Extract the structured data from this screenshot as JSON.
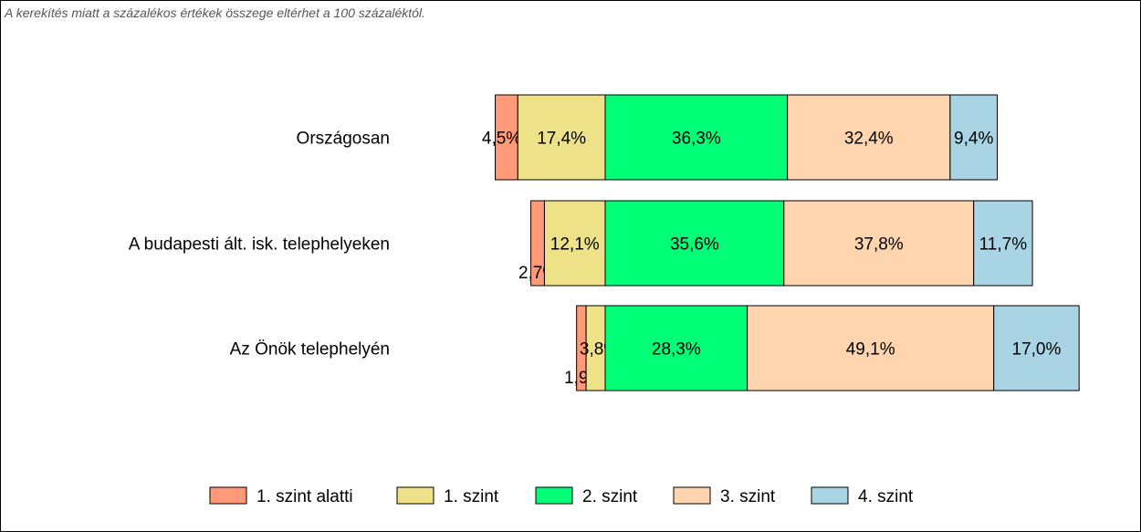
{
  "note": "A kerekítés miatt a  százalékos értékek összege eltérhet a 100 százaléktól.",
  "chart_data": {
    "type": "bar",
    "orientation": "horizontal",
    "stacked": true,
    "alignment": "diverging",
    "categories": [
      "Országosan",
      "A budapesti ált. isk. telephelyeken",
      "Az Önök telephelyén"
    ],
    "series": [
      {
        "name": "1. szint alatti",
        "color": "#FF9977",
        "values": [
          4.5,
          2.7,
          1.9
        ],
        "labels": [
          "4,5%",
          "2,7%",
          "1,9%"
        ]
      },
      {
        "name": "1. szint",
        "color": "#EEE288",
        "values": [
          17.4,
          12.1,
          3.8
        ],
        "labels": [
          "17,4%",
          "12,1%",
          "3,8%"
        ]
      },
      {
        "name": "2. szint",
        "color": "#00FF77",
        "values": [
          36.3,
          35.6,
          28.3
        ],
        "labels": [
          "36,3%",
          "35,6%",
          "28,3%"
        ]
      },
      {
        "name": "3. szint",
        "color": "#FFD5B0",
        "values": [
          32.4,
          37.8,
          49.1
        ],
        "labels": [
          "32,4%",
          "37,8%",
          "49,1%"
        ]
      },
      {
        "name": "4. szint",
        "color": "#A8D4E4",
        "values": [
          9.4,
          11.7,
          17.0
        ],
        "labels": [
          "9,4%",
          "11,7%",
          "17,0%"
        ]
      }
    ],
    "legend": "bottom",
    "grid": false
  }
}
